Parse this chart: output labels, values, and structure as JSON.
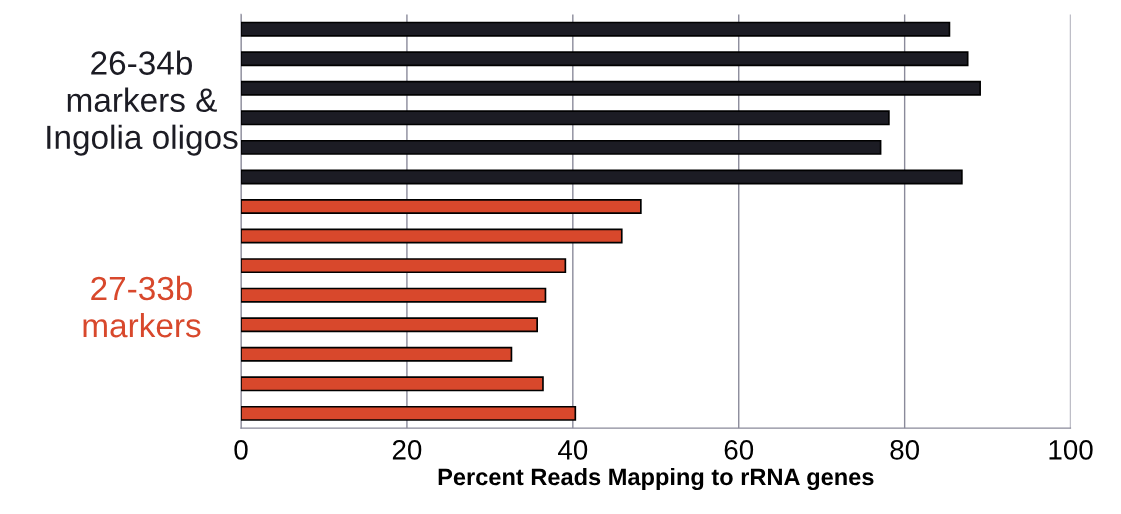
{
  "chart_data": {
    "type": "bar",
    "orientation": "horizontal",
    "xlabel": "Percent Reads Mapping to rRNA genes",
    "categories": [
      null,
      null,
      null,
      null,
      null,
      null,
      null,
      null,
      null,
      null,
      null,
      null,
      null,
      null
    ],
    "series": [
      {
        "color": "#1c1c24",
        "values": [
          85.4,
          87.6,
          89.1,
          78.1,
          77.1,
          86.9,
          null,
          null,
          null,
          null,
          null,
          null,
          null,
          null
        ]
      },
      {
        "color": "#d8482c",
        "values": [
          null,
          null,
          null,
          null,
          null,
          null,
          48.2,
          45.9,
          39.1,
          36.7,
          35.7,
          32.6,
          36.4,
          40.3
        ]
      }
    ],
    "annotations": [
      "26-34b\nmarkers &\nIngolia oligos",
      "27-33b\nmarkers"
    ],
    "xlim": [
      0,
      100
    ],
    "xticks": [
      0,
      20,
      40,
      60,
      80,
      100
    ],
    "grid": "x"
  }
}
